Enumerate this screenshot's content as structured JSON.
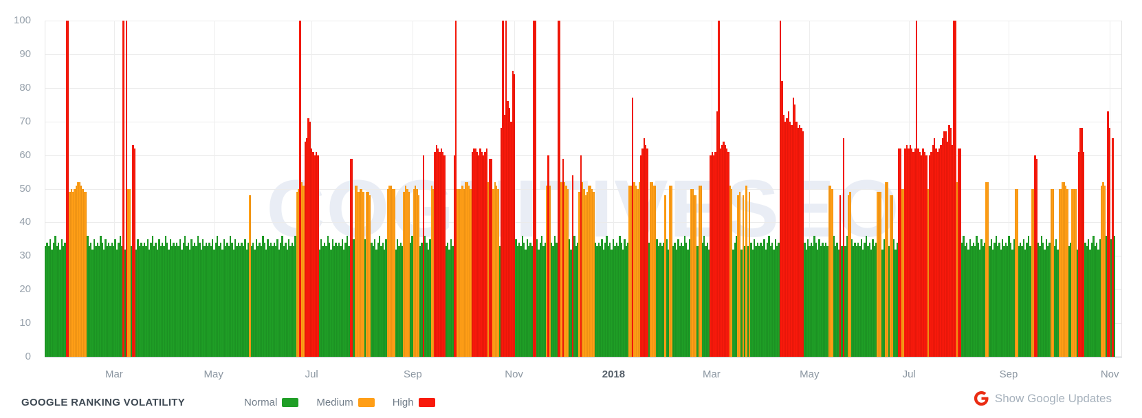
{
  "watermark": "COGNITIVESEO",
  "footer": {
    "title": "GOOGLE RANKING VOLATILITY",
    "google_updates": {
      "label": "Show Google Updates",
      "icon": "google-g-icon",
      "icon_color": "#ea2c13"
    }
  },
  "chart_data": {
    "type": "bar",
    "title": "GOOGLE RANKING VOLATILITY",
    "xlabel": "",
    "ylabel": "",
    "ylim": [
      0,
      100
    ],
    "yticks": [
      0,
      10,
      20,
      30,
      40,
      50,
      60,
      70,
      80,
      90,
      100
    ],
    "grid": true,
    "legend_position": "bottom",
    "legend": [
      {
        "label": "Normal",
        "level": "normal"
      },
      {
        "label": "Medium",
        "level": "medium"
      },
      {
        "label": "High",
        "level": "high"
      }
    ],
    "levels": {
      "normal": {
        "color": "#1f9e26"
      },
      "medium": {
        "color": "#ff9e16"
      },
      "high": {
        "color": "#f8190b"
      }
    },
    "total_days": 660,
    "x_axis_labels": [
      {
        "label": "Mar",
        "day": 42,
        "emphasis": false
      },
      {
        "label": "May",
        "day": 103,
        "emphasis": false
      },
      {
        "label": "Jul",
        "day": 163,
        "emphasis": false
      },
      {
        "label": "Sep",
        "day": 225,
        "emphasis": false
      },
      {
        "label": "Nov",
        "day": 287,
        "emphasis": false
      },
      {
        "label": "2018",
        "day": 348,
        "emphasis": true
      },
      {
        "label": "Mar",
        "day": 408,
        "emphasis": false
      },
      {
        "label": "May",
        "day": 468,
        "emphasis": false
      },
      {
        "label": "Jul",
        "day": 529,
        "emphasis": false
      },
      {
        "label": "Sep",
        "day": 590,
        "emphasis": false
      },
      {
        "label": "Nov",
        "day": 652,
        "emphasis": false
      }
    ],
    "baseline": {
      "level": "normal",
      "pattern": [
        33,
        34,
        33,
        35,
        32,
        34,
        36,
        33,
        34,
        32,
        35,
        33,
        34,
        33,
        36,
        34,
        32,
        35,
        33,
        34
      ]
    },
    "segments": [
      {
        "start": 13,
        "level": "high",
        "values": [
          100,
          100
        ]
      },
      {
        "start": 15,
        "level": "medium",
        "values": [
          49,
          50,
          49,
          50,
          51,
          52,
          52,
          51,
          50,
          49,
          49
        ]
      },
      {
        "start": 48,
        "level": "high",
        "values": [
          100
        ]
      },
      {
        "start": 50,
        "level": "high",
        "values": [
          100
        ]
      },
      {
        "start": 51,
        "level": "medium",
        "values": [
          50,
          50
        ]
      },
      {
        "start": 54,
        "level": "high",
        "values": [
          63,
          62
        ]
      },
      {
        "start": 126,
        "level": "medium",
        "values": [
          48
        ]
      },
      {
        "start": 155,
        "level": "medium",
        "values": [
          49,
          50
        ]
      },
      {
        "start": 157,
        "level": "high",
        "values": [
          100
        ]
      },
      {
        "start": 158,
        "level": "medium",
        "values": [
          52,
          51
        ]
      },
      {
        "start": 160,
        "level": "high",
        "values": [
          64,
          65,
          71,
          70,
          62,
          61,
          60,
          61,
          60
        ]
      },
      {
        "start": 188,
        "level": "high",
        "values": [
          59,
          59
        ]
      },
      {
        "start": 191,
        "level": "medium",
        "values": [
          51,
          51,
          49,
          50,
          50,
          49
        ]
      },
      {
        "start": 198,
        "level": "medium",
        "values": [
          49,
          49,
          48
        ]
      },
      {
        "start": 211,
        "level": "medium",
        "values": [
          50,
          51,
          51,
          50,
          50
        ]
      },
      {
        "start": 221,
        "level": "medium",
        "values": [
          49,
          51,
          50,
          49
        ]
      },
      {
        "start": 227,
        "level": "medium",
        "values": [
          50,
          51,
          50,
          48
        ]
      },
      {
        "start": 233,
        "level": "high",
        "values": [
          60
        ]
      },
      {
        "start": 238,
        "level": "medium",
        "values": [
          51,
          50
        ]
      },
      {
        "start": 240,
        "level": "high",
        "values": [
          61,
          63,
          62,
          61,
          62,
          61,
          60
        ]
      },
      {
        "start": 252,
        "level": "high",
        "values": [
          60,
          100
        ]
      },
      {
        "start": 254,
        "level": "medium",
        "values": [
          50,
          50,
          50,
          51,
          50,
          52,
          52,
          51,
          50
        ]
      },
      {
        "start": 263,
        "level": "high",
        "values": [
          61,
          62,
          62,
          61,
          60,
          62,
          61,
          60,
          61,
          62
        ]
      },
      {
        "start": 273,
        "level": "medium",
        "values": [
          52
        ]
      },
      {
        "start": 274,
        "level": "high",
        "values": [
          59,
          59
        ]
      },
      {
        "start": 276,
        "level": "medium",
        "values": [
          50,
          52,
          51,
          50
        ]
      },
      {
        "start": 281,
        "level": "high",
        "values": [
          68,
          100,
          72,
          100,
          76,
          74,
          70,
          85,
          84
        ]
      },
      {
        "start": 301,
        "level": "high",
        "values": [
          100,
          100
        ]
      },
      {
        "start": 309,
        "level": "medium",
        "values": [
          51
        ]
      },
      {
        "start": 310,
        "level": "high",
        "values": [
          60
        ]
      },
      {
        "start": 311,
        "level": "medium",
        "values": [
          51
        ]
      },
      {
        "start": 316,
        "level": "high",
        "values": [
          100,
          100
        ]
      },
      {
        "start": 318,
        "level": "medium",
        "values": [
          52
        ]
      },
      {
        "start": 319,
        "level": "high",
        "values": [
          59
        ]
      },
      {
        "start": 320,
        "level": "medium",
        "values": [
          52,
          51,
          50
        ]
      },
      {
        "start": 325,
        "level": "high",
        "values": [
          54
        ]
      },
      {
        "start": 329,
        "level": "medium",
        "values": [
          49
        ]
      },
      {
        "start": 330,
        "level": "high",
        "values": [
          60
        ]
      },
      {
        "start": 331,
        "level": "medium",
        "values": [
          52,
          50,
          48,
          49,
          51,
          51,
          50,
          49
        ]
      },
      {
        "start": 360,
        "level": "medium",
        "values": [
          51,
          51
        ]
      },
      {
        "start": 362,
        "level": "high",
        "values": [
          77
        ]
      },
      {
        "start": 363,
        "level": "medium",
        "values": [
          52,
          51,
          50,
          52
        ]
      },
      {
        "start": 367,
        "level": "high",
        "values": [
          60,
          62,
          65,
          63,
          62
        ]
      },
      {
        "start": 373,
        "level": "medium",
        "values": [
          52,
          52,
          51,
          51
        ]
      },
      {
        "start": 382,
        "level": "medium",
        "values": [
          48
        ]
      },
      {
        "start": 385,
        "level": "medium",
        "values": [
          51,
          51
        ]
      },
      {
        "start": 398,
        "level": "medium",
        "values": [
          50,
          50,
          48,
          48
        ]
      },
      {
        "start": 403,
        "level": "medium",
        "values": [
          51,
          51
        ]
      },
      {
        "start": 410,
        "level": "high",
        "values": [
          60,
          61,
          60,
          61,
          73,
          100,
          62,
          63,
          64,
          63,
          62,
          61
        ]
      },
      {
        "start": 422,
        "level": "medium",
        "values": [
          51,
          50
        ]
      },
      {
        "start": 427,
        "level": "medium",
        "values": [
          48,
          49
        ]
      },
      {
        "start": 430,
        "level": "medium",
        "values": [
          48
        ]
      },
      {
        "start": 432,
        "level": "medium",
        "values": [
          51
        ]
      },
      {
        "start": 434,
        "level": "medium",
        "values": [
          49
        ]
      },
      {
        "start": 453,
        "level": "high",
        "values": [
          100,
          82,
          72,
          70,
          71,
          73,
          70,
          69,
          77,
          75,
          70,
          68,
          69,
          68,
          67
        ]
      },
      {
        "start": 483,
        "level": "medium",
        "values": [
          51,
          51,
          50
        ]
      },
      {
        "start": 490,
        "level": "high",
        "values": [
          48
        ]
      },
      {
        "start": 492,
        "level": "high",
        "values": [
          65
        ]
      },
      {
        "start": 495,
        "level": "medium",
        "values": [
          48,
          49
        ]
      },
      {
        "start": 513,
        "level": "medium",
        "values": [
          49,
          49,
          49
        ]
      },
      {
        "start": 518,
        "level": "medium",
        "values": [
          52,
          52
        ]
      },
      {
        "start": 521,
        "level": "medium",
        "values": [
          48,
          48
        ]
      },
      {
        "start": 526,
        "level": "high",
        "values": [
          62,
          62
        ]
      },
      {
        "start": 528,
        "level": "medium",
        "values": [
          50,
          50
        ]
      },
      {
        "start": 530,
        "level": "high",
        "values": [
          62,
          63,
          62,
          63,
          62,
          61,
          62,
          100,
          62,
          61,
          60,
          62,
          61,
          60
        ]
      },
      {
        "start": 544,
        "level": "medium",
        "values": [
          50
        ]
      },
      {
        "start": 545,
        "level": "high",
        "values": [
          60,
          61,
          63,
          65,
          62,
          61,
          62,
          63,
          65,
          67,
          67,
          64,
          69,
          68
        ]
      },
      {
        "start": 559,
        "level": "high",
        "values": [
          63,
          100,
          100
        ]
      },
      {
        "start": 562,
        "level": "medium",
        "values": [
          52
        ]
      },
      {
        "start": 563,
        "level": "high",
        "values": [
          62,
          62
        ]
      },
      {
        "start": 580,
        "level": "medium",
        "values": [
          52,
          52
        ]
      },
      {
        "start": 598,
        "level": "medium",
        "values": [
          50,
          50
        ]
      },
      {
        "start": 608,
        "level": "medium",
        "values": [
          50,
          50
        ]
      },
      {
        "start": 610,
        "level": "high",
        "values": [
          60,
          59
        ]
      },
      {
        "start": 620,
        "level": "medium",
        "values": [
          50,
          50
        ]
      },
      {
        "start": 625,
        "level": "medium",
        "values": [
          50,
          50,
          52,
          52,
          51,
          50
        ]
      },
      {
        "start": 633,
        "level": "medium",
        "values": [
          50,
          50,
          50
        ]
      },
      {
        "start": 637,
        "level": "high",
        "values": [
          61,
          68,
          68,
          61
        ]
      },
      {
        "start": 651,
        "level": "medium",
        "values": [
          51,
          52,
          51
        ]
      },
      {
        "start": 655,
        "level": "high",
        "values": [
          73,
          68
        ]
      },
      {
        "start": 658,
        "level": "high",
        "values": [
          65
        ]
      },
      {
        "start": 659,
        "level": "normal",
        "values": [
          36
        ]
      }
    ]
  }
}
